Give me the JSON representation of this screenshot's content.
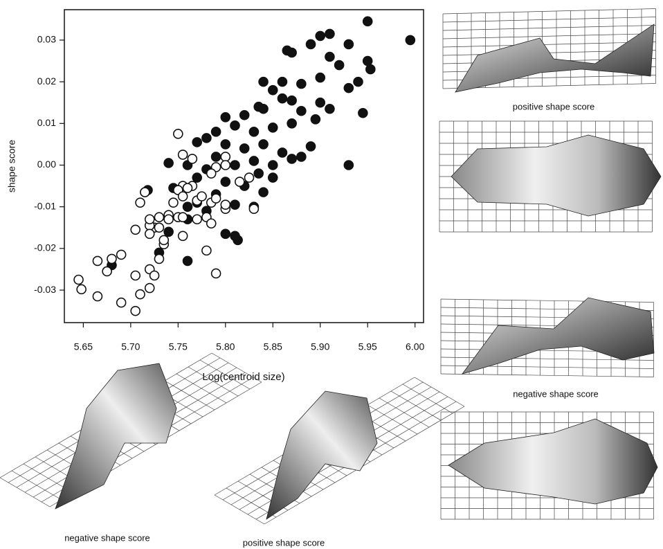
{
  "chart_data": {
    "type": "scatter",
    "x_label": "Log(centroid size)",
    "y_label": "shape score",
    "xlim": [
      5.63,
      6.009
    ],
    "ylim": [
      -0.0378,
      0.0373
    ],
    "xticks": [
      5.65,
      {
        "value": 5.7,
        "label": "5.70"
      },
      5.75,
      {
        "value": 5.8,
        "label": "5.80"
      },
      5.85,
      {
        "value": 5.9,
        "label": "5.90"
      },
      5.95,
      {
        "value": 6.0,
        "label": "6.00"
      }
    ],
    "yticks": [
      -0.03,
      -0.02,
      -0.01,
      {
        "value": 0,
        "label": "0.00"
      },
      0.01,
      0.02,
      0.03
    ],
    "series": [
      {
        "color": "#111111",
        "filled": true,
        "x": [
          5.995,
          5.95,
          5.93,
          5.945,
          5.95,
          5.953,
          5.94,
          5.93,
          5.91,
          5.9,
          5.89,
          5.87,
          5.865,
          5.91,
          5.92,
          5.93,
          5.9,
          5.88,
          5.86,
          5.85,
          5.84,
          5.835,
          5.84,
          5.82,
          5.8,
          5.86,
          5.87,
          5.88,
          5.9,
          5.91,
          5.895,
          5.87,
          5.85,
          5.83,
          5.81,
          5.79,
          5.78,
          5.77,
          5.8,
          5.82,
          5.84,
          5.86,
          5.88,
          5.89,
          5.87,
          5.85,
          5.83,
          5.81,
          5.79,
          5.78,
          5.76,
          5.74,
          5.77,
          5.8,
          5.82,
          5.84,
          5.85,
          5.835,
          5.79,
          5.81,
          5.83,
          5.77,
          5.76,
          5.745,
          5.78,
          5.8,
          5.81,
          5.813,
          5.76,
          5.74,
          5.73,
          5.715,
          5.718,
          5.76,
          5.68
        ],
        "values": [
          0.03,
          0.0345,
          0.0,
          0.0125,
          0.025,
          0.023,
          0.02,
          0.029,
          0.0315,
          0.031,
          0.029,
          0.027,
          0.0275,
          0.026,
          0.024,
          0.0185,
          0.021,
          0.0195,
          0.02,
          0.018,
          0.02,
          0.014,
          0.0135,
          0.012,
          0.0115,
          0.016,
          0.0155,
          0.013,
          0.015,
          0.0135,
          0.011,
          0.01,
          0.009,
          0.008,
          0.0095,
          0.008,
          0.0065,
          0.0055,
          0.005,
          0.004,
          0.005,
          0.003,
          0.002,
          0.0045,
          0.0015,
          0.0,
          0.001,
          0.0,
          0.002,
          -0.001,
          0.0,
          0.0005,
          -0.003,
          -0.004,
          -0.005,
          -0.0065,
          -0.003,
          -0.002,
          -0.007,
          -0.0095,
          -0.01,
          -0.009,
          -0.01,
          -0.0055,
          -0.011,
          -0.0165,
          -0.017,
          -0.018,
          -0.013,
          -0.016,
          -0.021,
          -0.0065,
          -0.006,
          -0.023,
          -0.024
        ]
      },
      {
        "color": "#111111",
        "filled": false,
        "x": [
          5.75,
          5.755,
          5.765,
          5.8,
          5.8,
          5.79,
          5.785,
          5.765,
          5.755,
          5.75,
          5.755,
          5.745,
          5.76,
          5.77,
          5.775,
          5.785,
          5.79,
          5.8,
          5.8,
          5.815,
          5.825,
          5.83,
          5.74,
          5.75,
          5.755,
          5.74,
          5.73,
          5.725,
          5.72,
          5.72,
          5.735,
          5.755,
          5.77,
          5.78,
          5.785,
          5.705,
          5.71,
          5.715,
          5.72,
          5.69,
          5.68,
          5.665,
          5.675,
          5.645,
          5.648,
          5.665,
          5.69,
          5.705,
          5.71,
          5.72,
          5.72,
          5.725,
          5.73,
          5.705,
          5.78,
          5.79,
          5.73,
          5.735
        ],
        "values": [
          0.0075,
          0.0025,
          0.0015,
          0.002,
          0.0,
          -0.0005,
          -0.002,
          -0.005,
          -0.005,
          -0.006,
          -0.0075,
          -0.009,
          -0.0055,
          -0.0085,
          -0.0075,
          -0.009,
          -0.008,
          -0.0105,
          -0.0095,
          -0.004,
          -0.003,
          -0.0105,
          -0.012,
          -0.0125,
          -0.0125,
          -0.013,
          -0.0125,
          -0.015,
          -0.0145,
          -0.0165,
          -0.019,
          -0.017,
          -0.013,
          -0.0125,
          -0.014,
          -0.0155,
          -0.009,
          -0.0065,
          -0.013,
          -0.0215,
          -0.0225,
          -0.023,
          -0.0255,
          -0.0275,
          -0.0298,
          -0.0315,
          -0.033,
          -0.035,
          -0.031,
          -0.0295,
          -0.025,
          -0.0265,
          -0.0225,
          -0.0265,
          -0.0205,
          -0.026,
          -0.015,
          -0.018
        ]
      }
    ]
  },
  "panels": [
    "positive shape score",
    "negative shape score",
    "negative shape score",
    "positive shape score"
  ]
}
